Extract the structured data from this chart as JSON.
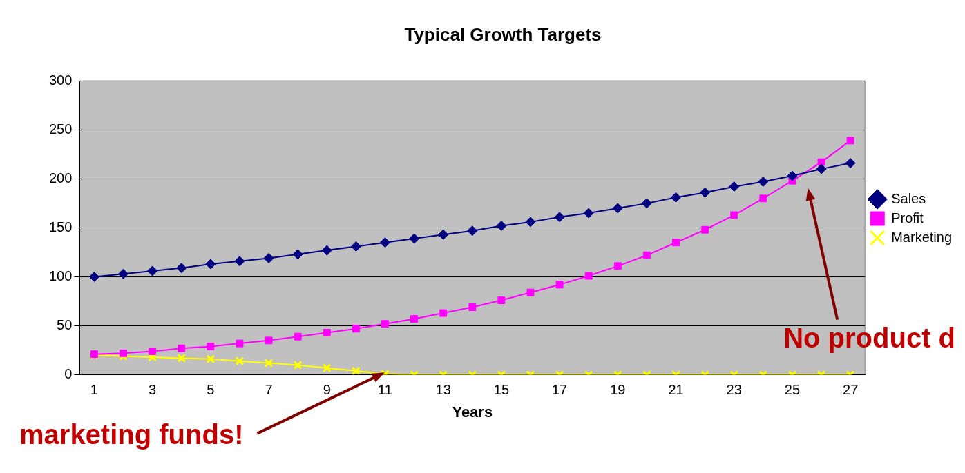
{
  "chart_data": {
    "type": "line",
    "title": "Typical Growth Targets",
    "xlabel": "Years",
    "x": [
      1,
      2,
      3,
      4,
      5,
      6,
      7,
      8,
      9,
      10,
      11,
      12,
      13,
      14,
      15,
      16,
      17,
      18,
      19,
      20,
      21,
      22,
      23,
      24,
      25,
      26,
      27
    ],
    "xlim": [
      0.5,
      27.5
    ],
    "xticks": [
      1,
      3,
      5,
      7,
      9,
      11,
      13,
      15,
      17,
      19,
      21,
      23,
      25,
      27
    ],
    "ylim": [
      0,
      300
    ],
    "yticks": [
      0,
      50,
      100,
      150,
      200,
      250,
      300
    ],
    "grid": "y",
    "legend": "right",
    "line_style": "solid",
    "series": [
      {
        "name": "Sales",
        "color": "#000080",
        "marker": "diamond",
        "values": [
          100,
          103,
          106,
          109,
          113,
          116,
          119,
          123,
          127,
          131,
          135,
          139,
          143,
          147,
          152,
          156,
          161,
          165,
          170,
          175,
          181,
          186,
          192,
          197,
          203,
          210,
          216
        ]
      },
      {
        "name": "Profit",
        "color": "#ff00ff",
        "marker": "square",
        "values": [
          21,
          22,
          24,
          27,
          29,
          32,
          35,
          39,
          43,
          47,
          52,
          57,
          63,
          69,
          76,
          84,
          92,
          101,
          111,
          122,
          135,
          148,
          163,
          180,
          198,
          217,
          239
        ]
      },
      {
        "name": "Marketing",
        "color": "#ffff00",
        "marker": "cross",
        "values": [
          20,
          19,
          18,
          17,
          16,
          14,
          12,
          10,
          7,
          4,
          1,
          0,
          0,
          0,
          0,
          0,
          0,
          0,
          0,
          0,
          0,
          0,
          0,
          0,
          0,
          0,
          0
        ]
      }
    ],
    "annotations": [
      "marketing funds!",
      "No product d"
    ]
  }
}
